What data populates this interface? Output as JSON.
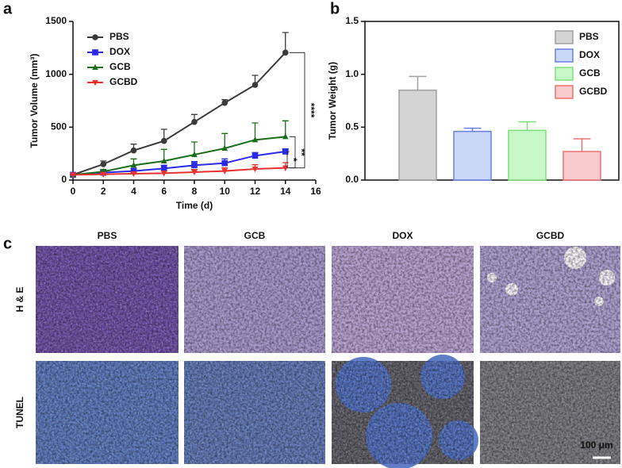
{
  "chart_data": [
    {
      "type": "line",
      "panel_label": "a",
      "x": [
        0,
        2,
        4,
        6,
        8,
        10,
        12,
        14
      ],
      "xlim": [
        0,
        16
      ],
      "xticks": [
        0,
        2,
        4,
        6,
        8,
        10,
        12,
        14,
        16
      ],
      "ylim": [
        0,
        1500
      ],
      "yticks": [
        0,
        500,
        1000,
        1500
      ],
      "x_label": "Time (d)",
      "y_label": "Tumor Volume (mm³)",
      "legend": "upper left",
      "series": [
        {
          "name": "PBS",
          "color": "#3a3a3a",
          "marker": "circle",
          "values": [
            50,
            150,
            280,
            370,
            550,
            730,
            900,
            1205
          ],
          "errors": [
            0,
            30,
            60,
            110,
            70,
            30,
            90,
            190
          ]
        },
        {
          "name": "DOX",
          "color": "#2a2aef",
          "marker": "square",
          "values": [
            50,
            70,
            85,
            110,
            140,
            160,
            230,
            270
          ],
          "errors": [
            0,
            20,
            25,
            30,
            35,
            40,
            30,
            25
          ]
        },
        {
          "name": "GCB",
          "color": "#1a6e1a",
          "marker": "triangle-up",
          "values": [
            50,
            80,
            140,
            180,
            240,
            300,
            380,
            410
          ],
          "errors": [
            0,
            20,
            60,
            110,
            120,
            140,
            160,
            150
          ]
        },
        {
          "name": "GCBD",
          "color": "#e8322f",
          "marker": "triangle-down",
          "values": [
            50,
            55,
            60,
            65,
            75,
            85,
            105,
            115
          ],
          "errors": [
            0,
            10,
            15,
            20,
            25,
            30,
            40,
            50
          ]
        }
      ],
      "annotations": [
        "****",
        "**",
        "*"
      ]
    },
    {
      "type": "bar",
      "panel_label": "b",
      "categories": [
        "PBS",
        "DOX",
        "GCB",
        "GCBD"
      ],
      "values": [
        0.85,
        0.46,
        0.47,
        0.27
      ],
      "errors": [
        0.13,
        0.03,
        0.08,
        0.12
      ],
      "colors": [
        "#d4d4d4",
        "#c8d8f6",
        "#c8f7c8",
        "#f8cccc"
      ],
      "edge_colors": [
        "#a0a0a0",
        "#6b7ee8",
        "#7be07b",
        "#f07070"
      ],
      "ylim": [
        0,
        1.5
      ],
      "yticks": [
        {
          "value": 0,
          "label": "0.0"
        },
        {
          "value": 0.5,
          "label": "0.5"
        },
        {
          "value": 1,
          "label": "1.0"
        },
        {
          "value": 1.5,
          "label": "1.5"
        }
      ],
      "y_label": "Tumor Weight (g)",
      "legend": "upper right",
      "frame": true
    }
  ],
  "panel_c": {
    "label": "c",
    "columns": [
      "PBS",
      "GCB",
      "DOX",
      "GCBD"
    ],
    "rows": [
      "H & E",
      "TUNEL"
    ],
    "scale_bar": "100 μm"
  }
}
